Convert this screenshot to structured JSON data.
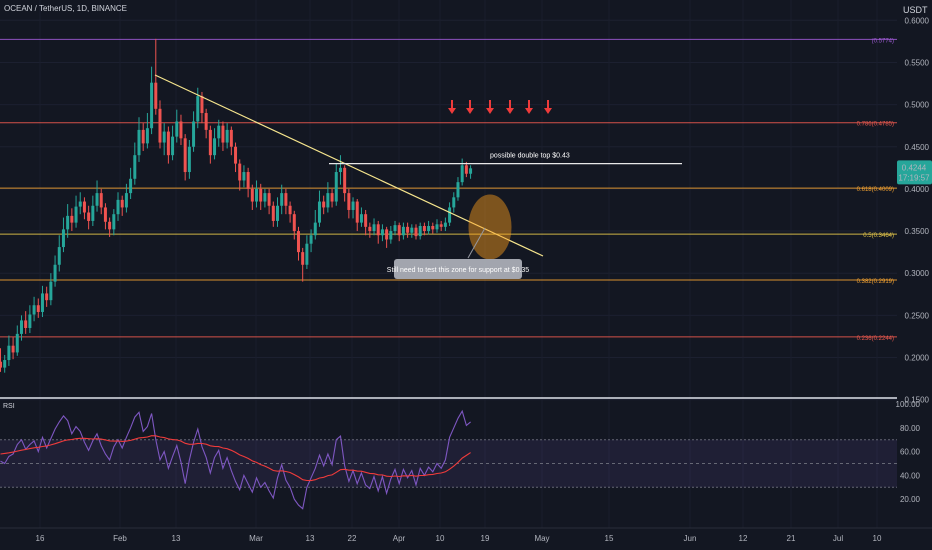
{
  "header": {
    "symbol_line": "OCEAN / TetherUS, 1D, BINANCE",
    "currency": "USDT",
    "rsi_label": "RSI"
  },
  "price_tag": {
    "price": "0.4244",
    "countdown": "17:19:57"
  },
  "annotations": {
    "double_top": "possible double top $0.43",
    "support_note": "Still need to test this zone for support at $0.35"
  },
  "colors": {
    "background": "#131722",
    "up": "#26a69a",
    "down": "#ef5350",
    "trendline": "#f6e58d",
    "rsi": "#7e57c2",
    "rsi_ma": "#ef3b3b"
  },
  "chart_data": [
    {
      "type": "candlestick",
      "symbol": "OCEAN / TetherUS",
      "timeframe": "1D",
      "exchange": "BINANCE",
      "ylim": [
        0.15,
        0.6
      ],
      "y_ticks": [
        "0.6000",
        "0.5500",
        "0.5000",
        "0.4500",
        "0.4000",
        "0.3500",
        "0.3000",
        "0.2500",
        "0.2000",
        "0.1500"
      ],
      "x_ticks": [
        "16",
        "Feb",
        "13",
        "Mar",
        "13",
        "22",
        "Apr",
        "10",
        "19",
        "May",
        "15",
        "Jun",
        "12",
        "21",
        "Jul",
        "10"
      ],
      "fib_levels": [
        {
          "label": "(0.5774)",
          "value": 0.5774,
          "color": "#9b59d0"
        },
        {
          "label": "0.786(0.4785)",
          "value": 0.4785,
          "color": "#e8584e"
        },
        {
          "label": "0.618(0.4009)",
          "value": 0.4009,
          "color": "#f0a030"
        },
        {
          "label": "0.5(0.3464)",
          "value": 0.3464,
          "color": "#e3c64b"
        },
        {
          "label": "0.382(0.2919)",
          "value": 0.2919,
          "color": "#f0a030"
        },
        {
          "label": "0.236(0.2244)",
          "value": 0.2244,
          "color": "#e8584e"
        }
      ],
      "current_price": 0.4244,
      "double_top_level": 0.43,
      "support_zone": 0.35,
      "candles": [
        [
          0.195,
          0.188,
          0.211,
          0.183
        ],
        [
          0.188,
          0.197,
          0.203,
          0.182
        ],
        [
          0.197,
          0.214,
          0.226,
          0.19
        ],
        [
          0.214,
          0.206,
          0.224,
          0.198
        ],
        [
          0.206,
          0.228,
          0.238,
          0.202
        ],
        [
          0.228,
          0.244,
          0.25,
          0.22
        ],
        [
          0.244,
          0.235,
          0.255,
          0.228
        ],
        [
          0.235,
          0.251,
          0.262,
          0.229
        ],
        [
          0.251,
          0.262,
          0.272,
          0.243
        ],
        [
          0.262,
          0.254,
          0.27,
          0.247
        ],
        [
          0.254,
          0.276,
          0.285,
          0.248
        ],
        [
          0.276,
          0.268,
          0.284,
          0.26
        ],
        [
          0.268,
          0.29,
          0.3,
          0.262
        ],
        [
          0.29,
          0.31,
          0.321,
          0.284
        ],
        [
          0.31,
          0.331,
          0.345,
          0.302
        ],
        [
          0.331,
          0.352,
          0.366,
          0.325
        ],
        [
          0.352,
          0.368,
          0.382,
          0.342
        ],
        [
          0.368,
          0.36,
          0.377,
          0.35
        ],
        [
          0.36,
          0.379,
          0.392,
          0.354
        ],
        [
          0.379,
          0.385,
          0.396,
          0.37
        ],
        [
          0.385,
          0.372,
          0.39,
          0.364
        ],
        [
          0.372,
          0.362,
          0.38,
          0.352
        ],
        [
          0.362,
          0.38,
          0.392,
          0.356
        ],
        [
          0.38,
          0.395,
          0.41,
          0.373
        ],
        [
          0.395,
          0.378,
          0.4,
          0.37
        ],
        [
          0.378,
          0.361,
          0.383,
          0.352
        ],
        [
          0.361,
          0.352,
          0.366,
          0.343
        ],
        [
          0.352,
          0.37,
          0.376,
          0.345
        ],
        [
          0.37,
          0.387,
          0.396,
          0.362
        ],
        [
          0.387,
          0.378,
          0.392,
          0.368
        ],
        [
          0.378,
          0.395,
          0.406,
          0.372
        ],
        [
          0.395,
          0.412,
          0.425,
          0.388
        ],
        [
          0.412,
          0.44,
          0.455,
          0.405
        ],
        [
          0.44,
          0.47,
          0.485,
          0.432
        ],
        [
          0.47,
          0.454,
          0.478,
          0.445
        ],
        [
          0.454,
          0.472,
          0.49,
          0.448
        ],
        [
          0.472,
          0.526,
          0.545,
          0.465
        ],
        [
          0.526,
          0.495,
          0.578,
          0.488
        ],
        [
          0.495,
          0.455,
          0.505,
          0.448
        ],
        [
          0.455,
          0.468,
          0.478,
          0.44
        ],
        [
          0.468,
          0.44,
          0.474,
          0.43
        ],
        [
          0.44,
          0.462,
          0.475,
          0.434
        ],
        [
          0.462,
          0.48,
          0.494,
          0.455
        ],
        [
          0.48,
          0.46,
          0.488,
          0.452
        ],
        [
          0.46,
          0.42,
          0.465,
          0.41
        ],
        [
          0.42,
          0.45,
          0.458,
          0.412
        ],
        [
          0.45,
          0.48,
          0.492,
          0.444
        ],
        [
          0.48,
          0.51,
          0.52,
          0.472
        ],
        [
          0.51,
          0.49,
          0.515,
          0.478
        ],
        [
          0.49,
          0.47,
          0.495,
          0.46
        ],
        [
          0.47,
          0.44,
          0.475,
          0.43
        ],
        [
          0.44,
          0.46,
          0.472,
          0.435
        ],
        [
          0.46,
          0.475,
          0.482,
          0.45
        ],
        [
          0.475,
          0.455,
          0.48,
          0.445
        ],
        [
          0.455,
          0.47,
          0.478,
          0.448
        ],
        [
          0.47,
          0.45,
          0.474,
          0.44
        ],
        [
          0.45,
          0.43,
          0.455,
          0.42
        ],
        [
          0.43,
          0.41,
          0.435,
          0.398
        ],
        [
          0.41,
          0.42,
          0.428,
          0.402
        ],
        [
          0.42,
          0.4,
          0.425,
          0.39
        ],
        [
          0.4,
          0.385,
          0.405,
          0.375
        ],
        [
          0.385,
          0.4,
          0.41,
          0.378
        ],
        [
          0.4,
          0.385,
          0.406,
          0.375
        ],
        [
          0.385,
          0.395,
          0.4,
          0.378
        ],
        [
          0.395,
          0.38,
          0.4,
          0.37
        ],
        [
          0.38,
          0.362,
          0.385,
          0.355
        ],
        [
          0.362,
          0.38,
          0.39,
          0.355
        ],
        [
          0.38,
          0.395,
          0.405,
          0.37
        ],
        [
          0.395,
          0.38,
          0.4,
          0.37
        ],
        [
          0.38,
          0.37,
          0.385,
          0.36
        ],
        [
          0.37,
          0.35,
          0.374,
          0.34
        ],
        [
          0.35,
          0.325,
          0.355,
          0.315
        ],
        [
          0.325,
          0.31,
          0.33,
          0.29
        ],
        [
          0.31,
          0.335,
          0.345,
          0.305
        ],
        [
          0.335,
          0.345,
          0.352,
          0.325
        ],
        [
          0.345,
          0.36,
          0.375,
          0.34
        ],
        [
          0.36,
          0.385,
          0.398,
          0.355
        ],
        [
          0.385,
          0.378,
          0.392,
          0.37
        ],
        [
          0.378,
          0.395,
          0.408,
          0.372
        ],
        [
          0.395,
          0.385,
          0.4,
          0.378
        ],
        [
          0.385,
          0.42,
          0.43,
          0.38
        ],
        [
          0.42,
          0.425,
          0.44,
          0.405
        ],
        [
          0.425,
          0.395,
          0.428,
          0.385
        ],
        [
          0.395,
          0.375,
          0.4,
          0.365
        ],
        [
          0.375,
          0.385,
          0.39,
          0.365
        ],
        [
          0.385,
          0.36,
          0.388,
          0.35
        ],
        [
          0.36,
          0.37,
          0.378,
          0.355
        ],
        [
          0.37,
          0.355,
          0.375,
          0.345
        ],
        [
          0.355,
          0.35,
          0.36,
          0.342
        ],
        [
          0.35,
          0.358,
          0.365,
          0.345
        ],
        [
          0.358,
          0.345,
          0.362,
          0.335
        ],
        [
          0.345,
          0.352,
          0.358,
          0.338
        ],
        [
          0.352,
          0.34,
          0.355,
          0.33
        ],
        [
          0.34,
          0.35,
          0.356,
          0.335
        ],
        [
          0.35,
          0.357,
          0.362,
          0.345
        ],
        [
          0.357,
          0.345,
          0.36,
          0.338
        ],
        [
          0.345,
          0.355,
          0.36,
          0.34
        ],
        [
          0.355,
          0.348,
          0.36,
          0.342
        ],
        [
          0.348,
          0.354,
          0.358,
          0.342
        ],
        [
          0.354,
          0.344,
          0.358,
          0.34
        ],
        [
          0.344,
          0.356,
          0.36,
          0.34
        ],
        [
          0.356,
          0.35,
          0.36,
          0.345
        ],
        [
          0.35,
          0.356,
          0.362,
          0.346
        ],
        [
          0.356,
          0.352,
          0.36,
          0.347
        ],
        [
          0.352,
          0.358,
          0.364,
          0.348
        ],
        [
          0.358,
          0.355,
          0.362,
          0.35
        ],
        [
          0.355,
          0.36,
          0.366,
          0.35
        ],
        [
          0.36,
          0.378,
          0.384,
          0.356
        ],
        [
          0.378,
          0.39,
          0.396,
          0.372
        ],
        [
          0.39,
          0.408,
          0.414,
          0.386
        ],
        [
          0.408,
          0.428,
          0.436,
          0.404
        ],
        [
          0.428,
          0.418,
          0.432,
          0.414
        ],
        [
          0.418,
          0.4244,
          0.428,
          0.412
        ]
      ]
    },
    {
      "type": "line",
      "title": "RSI",
      "ylim": [
        10,
        100
      ],
      "y_ticks": [
        "100.00",
        "80.00",
        "60.00",
        "40.00",
        "20.00"
      ],
      "overbought": 70,
      "oversold": 30,
      "mid": 50,
      "series": [
        {
          "color": "#7e57c2",
          "values": [
            52,
            50,
            56,
            58,
            66,
            70,
            62,
            66,
            69,
            60,
            72,
            63,
            71,
            79,
            85,
            90,
            86,
            75,
            81,
            77,
            68,
            61,
            69,
            75,
            65,
            58,
            53,
            64,
            70,
            63,
            72,
            80,
            89,
            93,
            77,
            81,
            92,
            70,
            53,
            60,
            46,
            56,
            65,
            51,
            33,
            53,
            68,
            79,
            64,
            55,
            42,
            55,
            61,
            46,
            55,
            44,
            35,
            28,
            40,
            33,
            26,
            38,
            30,
            34,
            27,
            21,
            38,
            49,
            36,
            30,
            20,
            15,
            12,
            30,
            38,
            46,
            57,
            48,
            58,
            49,
            70,
            73,
            48,
            35,
            44,
            33,
            42,
            32,
            29,
            39,
            27,
            39,
            25,
            37,
            45,
            33,
            45,
            38,
            44,
            32,
            46,
            40,
            47,
            43,
            50,
            46,
            53,
            72,
            80,
            88,
            94,
            82,
            85
          ]
        },
        {
          "color": "#ef3b3b",
          "values": [
            58,
            58.5,
            59,
            59.6,
            60.4,
            61.2,
            61.8,
            62.5,
            63.2,
            63.6,
            64.3,
            64.8,
            65.6,
            66.6,
            67.8,
            69,
            69.8,
            70.2,
            70.8,
            71.2,
            71.2,
            70.8,
            70.6,
            70.8,
            70.5,
            69.8,
            69,
            68.8,
            68.9,
            68.6,
            68.8,
            69.4,
            70.4,
            71.5,
            71.8,
            72.3,
            73.4,
            73.3,
            72.3,
            71.8,
            70.7,
            70.1,
            69.8,
            68.8,
            67,
            66.1,
            66.2,
            66.9,
            66.8,
            66.2,
            64.9,
            64.4,
            64.2,
            63,
            62.4,
            61.1,
            59.3,
            57.2,
            55.9,
            54.3,
            52.2,
            50.9,
            49.1,
            47.8,
            46.1,
            44.1,
            43.5,
            43.9,
            43.3,
            42.4,
            40.7,
            38.7,
            36.4,
            35.7,
            35.6,
            36.4,
            37.8,
            38.4,
            39.8,
            40.4,
            42.6,
            44.8,
            45.1,
            44.4,
            44.4,
            43.6,
            43.5,
            42.6,
            41.7,
            41.4,
            40.5,
            40.4,
            39.3,
            39.1,
            39.5,
            39.1,
            39.7,
            39.6,
            40,
            39.3,
            39.9,
            40,
            40.6,
            40.8,
            41.6,
            42,
            43,
            45.2,
            47.8,
            50.9,
            54.5,
            56.8,
            59.2
          ]
        }
      ]
    }
  ]
}
